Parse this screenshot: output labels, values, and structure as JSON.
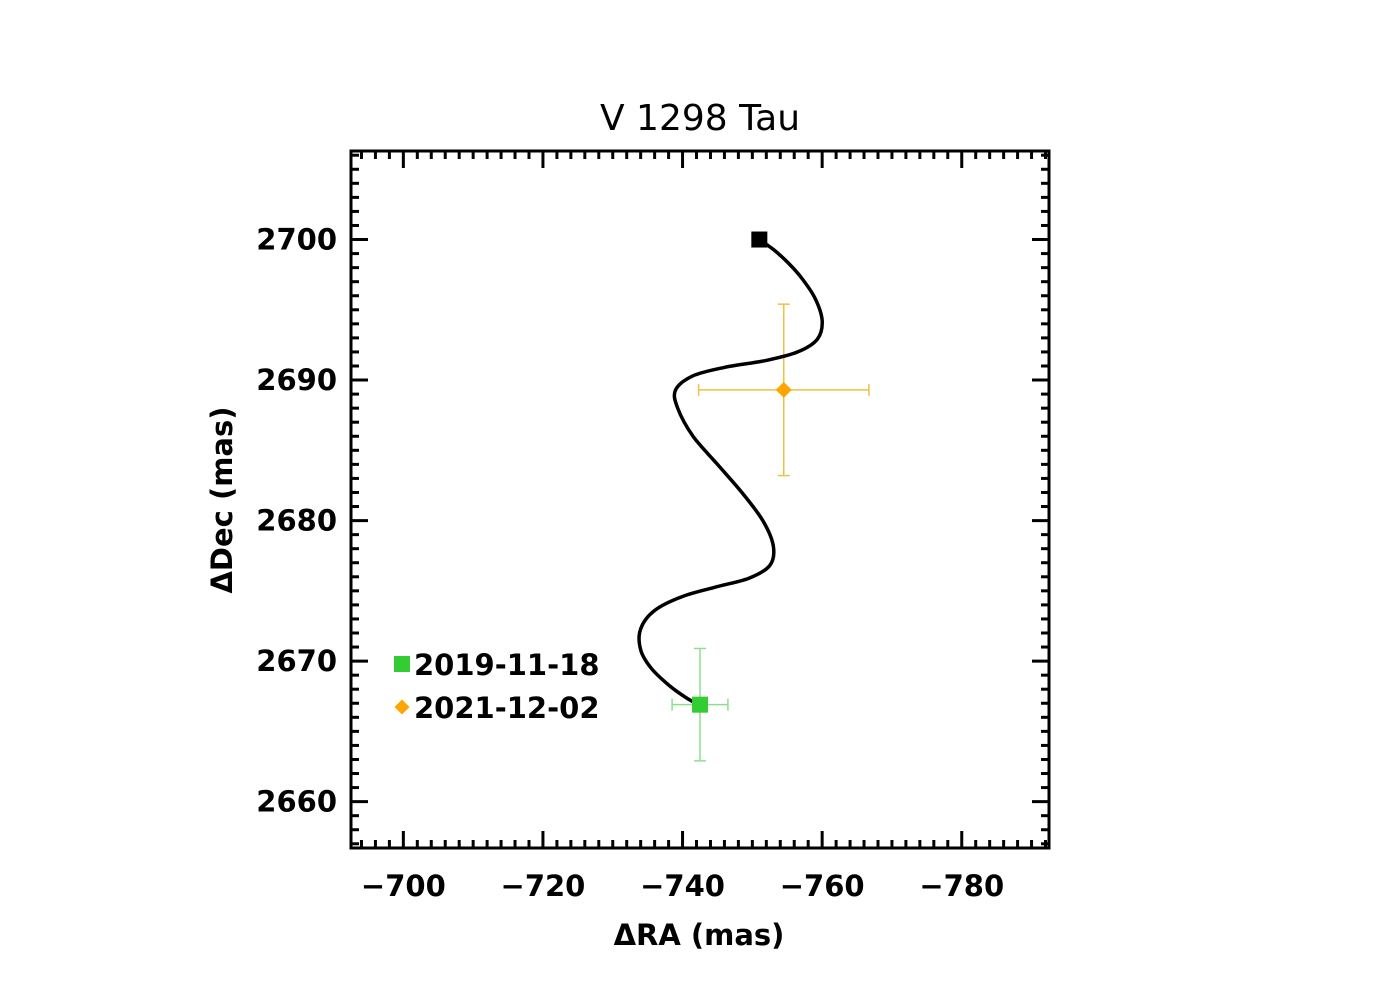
{
  "chart_data": {
    "type": "scatter",
    "title": "V 1298 Tau",
    "xlabel": "ΔRA (mas)",
    "ylabel": "ΔDec (mas)",
    "xlim": [
      -692.5,
      -792.5
    ],
    "ylim": [
      2656.7,
      2706.3
    ],
    "x_reversed": true,
    "xticks": [
      -700,
      -720,
      -740,
      -760,
      -780
    ],
    "yticks": [
      2660,
      2670,
      2680,
      2690,
      2700
    ],
    "xtick_labels": [
      "−700",
      "−720",
      "−740",
      "−760",
      "−780"
    ],
    "ytick_labels": [
      "2660",
      "2670",
      "2680",
      "2690",
      "2700"
    ],
    "grid": false,
    "legend_position": "bottom-left",
    "track": {
      "color": "#000000",
      "points": [
        {
          "x": -751.0,
          "y": 2700.0
        },
        {
          "x": -753.0,
          "y": 2699.3
        },
        {
          "x": -755.0,
          "y": 2698.4
        },
        {
          "x": -757.0,
          "y": 2697.3
        },
        {
          "x": -759.0,
          "y": 2695.8
        },
        {
          "x": -760.0,
          "y": 2694.2
        },
        {
          "x": -759.3,
          "y": 2692.9
        },
        {
          "x": -756.5,
          "y": 2692.0
        },
        {
          "x": -752.0,
          "y": 2691.4
        },
        {
          "x": -746.0,
          "y": 2690.9
        },
        {
          "x": -741.5,
          "y": 2690.3
        },
        {
          "x": -739.0,
          "y": 2689.3
        },
        {
          "x": -739.3,
          "y": 2688.0
        },
        {
          "x": -741.5,
          "y": 2686.0
        },
        {
          "x": -745.0,
          "y": 2684.0
        },
        {
          "x": -748.5,
          "y": 2682.0
        },
        {
          "x": -751.5,
          "y": 2680.0
        },
        {
          "x": -753.0,
          "y": 2678.2
        },
        {
          "x": -752.5,
          "y": 2676.8
        },
        {
          "x": -749.5,
          "y": 2675.9
        },
        {
          "x": -745.0,
          "y": 2675.3
        },
        {
          "x": -740.0,
          "y": 2674.6
        },
        {
          "x": -736.0,
          "y": 2673.6
        },
        {
          "x": -734.0,
          "y": 2672.3
        },
        {
          "x": -734.0,
          "y": 2670.8
        },
        {
          "x": -735.5,
          "y": 2669.5
        },
        {
          "x": -738.0,
          "y": 2668.3
        },
        {
          "x": -740.5,
          "y": 2667.4
        },
        {
          "x": -742.3,
          "y": 2666.9
        }
      ],
      "start_marker": {
        "x": -751.0,
        "y": 2700.0,
        "shape": "square",
        "color": "#000000"
      }
    },
    "series": [
      {
        "name": "2019-11-18",
        "marker": "square",
        "color": "#33cc33",
        "errorbar_color": "#8de08d",
        "x": -742.5,
        "y": 2666.9,
        "x_err": 4.0,
        "y_err": 4.0
      },
      {
        "name": "2021-12-02",
        "marker": "diamond",
        "color": "#ffa500",
        "errorbar_color": "#f0c040",
        "x": -754.5,
        "y": 2689.3,
        "x_err": 12.2,
        "y_err": 6.1
      }
    ]
  }
}
